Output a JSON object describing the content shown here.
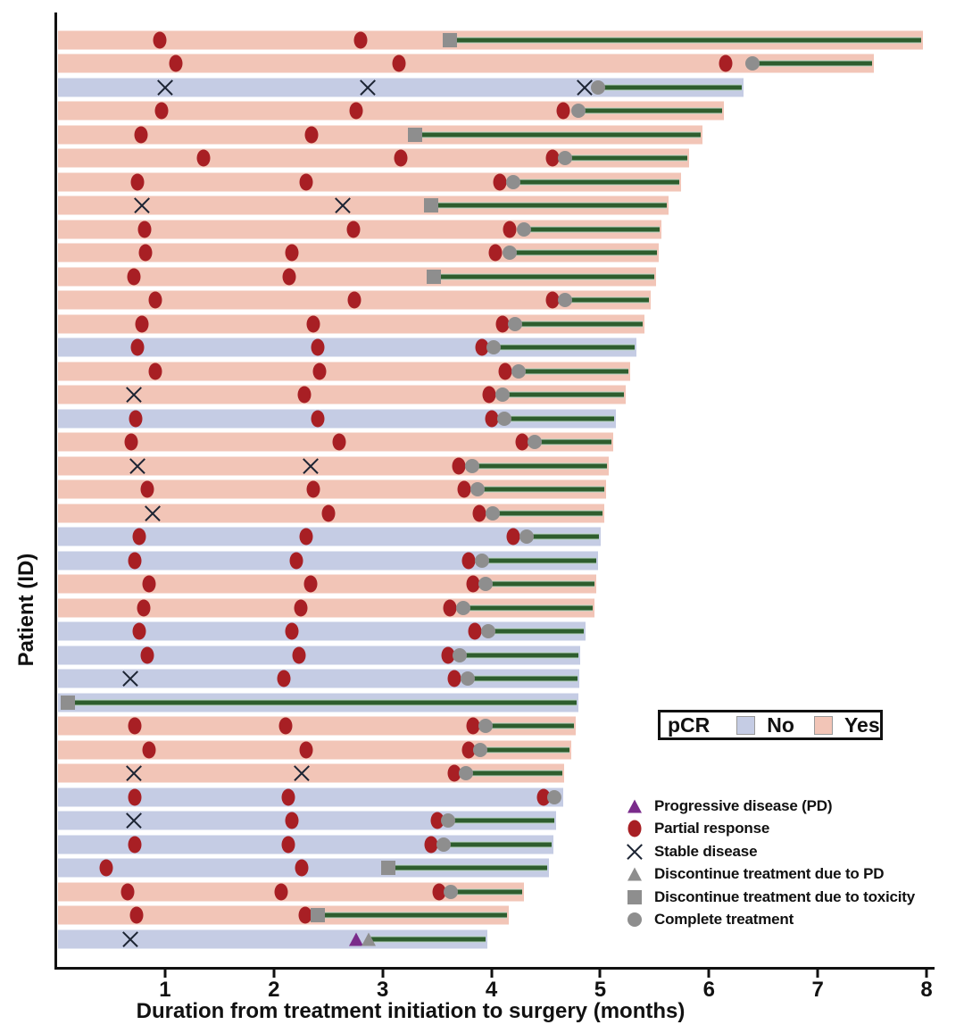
{
  "chart_data": {
    "type": "swimmer",
    "title": "",
    "xlabel": "Duration from treatment initiation to surgery (months)",
    "ylabel": "Patient (ID)",
    "xlim": [
      0,
      8
    ],
    "xticks": [
      1,
      2,
      3,
      4,
      5,
      6,
      7,
      8
    ],
    "grid": false,
    "legend_position": "lower right",
    "colors": {
      "pcr_yes": "#f2c5b7",
      "pcr_no": "#c5cce4",
      "partial_response": "#a81f24",
      "stable_disease": "#1c2433",
      "progressive_disease": "#7a2b8b",
      "discontinue_or_complete": "#8e8e8e",
      "post_treatment_line": "#2e5d2e",
      "axis": "#111111"
    },
    "pcr_legend": {
      "title": "pCR",
      "items": [
        {
          "label": "No",
          "color": "#c5cce4"
        },
        {
          "label": "Yes",
          "color": "#f2c5b7"
        }
      ]
    },
    "marker_legend": [
      {
        "marker": "pd",
        "label": "Progressive disease (PD)"
      },
      {
        "marker": "partial_response",
        "label": "Partial response"
      },
      {
        "marker": "stable_disease",
        "label": "Stable disease"
      },
      {
        "marker": "disc_pd",
        "label": "Discontinue treatment due to PD"
      },
      {
        "marker": "disc_tox",
        "label": "Discontinue treatment due to toxicity"
      },
      {
        "marker": "complete",
        "label": "Complete treatment"
      }
    ],
    "patients": [
      {
        "pcr": "Yes",
        "end": 7.95,
        "line_from": 3.62,
        "markers": [
          [
            "partial_response",
            0.95
          ],
          [
            "partial_response",
            2.8
          ],
          [
            "disc_tox",
            3.62
          ]
        ]
      },
      {
        "pcr": "Yes",
        "end": 7.5,
        "line_from": 6.4,
        "markers": [
          [
            "partial_response",
            1.1
          ],
          [
            "partial_response",
            3.15
          ],
          [
            "partial_response",
            6.15
          ],
          [
            "complete",
            6.4
          ]
        ]
      },
      {
        "pcr": "No",
        "end": 6.3,
        "line_from": 4.98,
        "markers": [
          [
            "stable_disease",
            1.0
          ],
          [
            "stable_disease",
            2.86
          ],
          [
            "stable_disease",
            4.86
          ],
          [
            "complete",
            4.98
          ]
        ]
      },
      {
        "pcr": "Yes",
        "end": 6.12,
        "line_from": 4.8,
        "markers": [
          [
            "partial_response",
            0.97
          ],
          [
            "partial_response",
            2.76
          ],
          [
            "partial_response",
            4.66
          ],
          [
            "complete",
            4.8
          ]
        ]
      },
      {
        "pcr": "Yes",
        "end": 5.92,
        "line_from": 3.3,
        "markers": [
          [
            "partial_response",
            0.78
          ],
          [
            "partial_response",
            2.35
          ],
          [
            "disc_tox",
            3.3
          ]
        ]
      },
      {
        "pcr": "Yes",
        "end": 5.8,
        "line_from": 4.68,
        "markers": [
          [
            "partial_response",
            1.35
          ],
          [
            "partial_response",
            3.17
          ],
          [
            "partial_response",
            4.56
          ],
          [
            "complete",
            4.68
          ]
        ]
      },
      {
        "pcr": "Yes",
        "end": 5.73,
        "line_from": 4.2,
        "markers": [
          [
            "partial_response",
            0.75
          ],
          [
            "partial_response",
            2.3
          ],
          [
            "partial_response",
            4.08
          ],
          [
            "complete",
            4.2
          ]
        ]
      },
      {
        "pcr": "Yes",
        "end": 5.61,
        "line_from": 3.45,
        "markers": [
          [
            "stable_disease",
            0.79
          ],
          [
            "stable_disease",
            2.63
          ],
          [
            "disc_tox",
            3.45
          ]
        ]
      },
      {
        "pcr": "Yes",
        "end": 5.55,
        "line_from": 4.3,
        "markers": [
          [
            "partial_response",
            0.81
          ],
          [
            "partial_response",
            2.73
          ],
          [
            "partial_response",
            4.17
          ],
          [
            "complete",
            4.3
          ]
        ]
      },
      {
        "pcr": "Yes",
        "end": 5.52,
        "line_from": 4.17,
        "markers": [
          [
            "partial_response",
            0.82
          ],
          [
            "partial_response",
            2.17
          ],
          [
            "partial_response",
            4.04
          ],
          [
            "complete",
            4.17
          ]
        ]
      },
      {
        "pcr": "Yes",
        "end": 5.5,
        "line_from": 3.47,
        "markers": [
          [
            "partial_response",
            0.71
          ],
          [
            "partial_response",
            2.14
          ],
          [
            "disc_tox",
            3.47
          ]
        ]
      },
      {
        "pcr": "Yes",
        "end": 5.45,
        "line_from": 4.68,
        "markers": [
          [
            "partial_response",
            0.91
          ],
          [
            "partial_response",
            2.74
          ],
          [
            "partial_response",
            4.56
          ],
          [
            "complete",
            4.68
          ]
        ]
      },
      {
        "pcr": "Yes",
        "end": 5.39,
        "line_from": 4.22,
        "markers": [
          [
            "partial_response",
            0.79
          ],
          [
            "partial_response",
            2.36
          ],
          [
            "partial_response",
            4.1
          ],
          [
            "complete",
            4.22
          ]
        ]
      },
      {
        "pcr": "No",
        "end": 5.32,
        "line_from": 4.02,
        "markers": [
          [
            "partial_response",
            0.75
          ],
          [
            "partial_response",
            2.4
          ],
          [
            "partial_response",
            3.91
          ],
          [
            "complete",
            4.02
          ]
        ]
      },
      {
        "pcr": "Yes",
        "end": 5.26,
        "line_from": 4.25,
        "markers": [
          [
            "partial_response",
            0.91
          ],
          [
            "partial_response",
            2.42
          ],
          [
            "partial_response",
            4.13
          ],
          [
            "complete",
            4.25
          ]
        ]
      },
      {
        "pcr": "Yes",
        "end": 5.22,
        "line_from": 4.1,
        "markers": [
          [
            "stable_disease",
            0.71
          ],
          [
            "partial_response",
            2.28
          ],
          [
            "partial_response",
            3.98
          ],
          [
            "complete",
            4.1
          ]
        ]
      },
      {
        "pcr": "No",
        "end": 5.13,
        "line_from": 4.12,
        "markers": [
          [
            "partial_response",
            0.73
          ],
          [
            "partial_response",
            2.4
          ],
          [
            "partial_response",
            4.0
          ],
          [
            "complete",
            4.12
          ]
        ]
      },
      {
        "pcr": "Yes",
        "end": 5.1,
        "line_from": 4.4,
        "markers": [
          [
            "partial_response",
            0.69
          ],
          [
            "partial_response",
            2.6
          ],
          [
            "partial_response",
            4.28
          ],
          [
            "complete",
            4.4
          ]
        ]
      },
      {
        "pcr": "Yes",
        "end": 5.06,
        "line_from": 3.82,
        "markers": [
          [
            "stable_disease",
            0.75
          ],
          [
            "stable_disease",
            2.34
          ],
          [
            "partial_response",
            3.7
          ],
          [
            "complete",
            3.82
          ]
        ]
      },
      {
        "pcr": "Yes",
        "end": 5.04,
        "line_from": 3.87,
        "markers": [
          [
            "partial_response",
            0.84
          ],
          [
            "partial_response",
            2.36
          ],
          [
            "partial_response",
            3.75
          ],
          [
            "complete",
            3.87
          ]
        ]
      },
      {
        "pcr": "Yes",
        "end": 5.02,
        "line_from": 4.01,
        "markers": [
          [
            "stable_disease",
            0.89
          ],
          [
            "partial_response",
            2.5
          ],
          [
            "partial_response",
            3.89
          ],
          [
            "complete",
            4.01
          ]
        ]
      },
      {
        "pcr": "No",
        "end": 4.99,
        "line_from": 4.32,
        "markers": [
          [
            "partial_response",
            0.76
          ],
          [
            "partial_response",
            2.3
          ],
          [
            "partial_response",
            4.2
          ],
          [
            "complete",
            4.32
          ]
        ]
      },
      {
        "pcr": "No",
        "end": 4.96,
        "line_from": 3.91,
        "markers": [
          [
            "partial_response",
            0.72
          ],
          [
            "partial_response",
            2.21
          ],
          [
            "partial_response",
            3.79
          ],
          [
            "complete",
            3.91
          ]
        ]
      },
      {
        "pcr": "Yes",
        "end": 4.95,
        "line_from": 3.95,
        "markers": [
          [
            "partial_response",
            0.85
          ],
          [
            "partial_response",
            2.34
          ],
          [
            "partial_response",
            3.83
          ],
          [
            "complete",
            3.95
          ]
        ]
      },
      {
        "pcr": "Yes",
        "end": 4.93,
        "line_from": 3.74,
        "markers": [
          [
            "partial_response",
            0.8
          ],
          [
            "partial_response",
            2.25
          ],
          [
            "partial_response",
            3.62
          ],
          [
            "complete",
            3.74
          ]
        ]
      },
      {
        "pcr": "No",
        "end": 4.85,
        "line_from": 3.97,
        "markers": [
          [
            "partial_response",
            0.76
          ],
          [
            "partial_response",
            2.17
          ],
          [
            "partial_response",
            3.85
          ],
          [
            "complete",
            3.97
          ]
        ]
      },
      {
        "pcr": "No",
        "end": 4.8,
        "line_from": 3.71,
        "markers": [
          [
            "partial_response",
            0.84
          ],
          [
            "partial_response",
            2.23
          ],
          [
            "partial_response",
            3.6
          ],
          [
            "complete",
            3.71
          ]
        ]
      },
      {
        "pcr": "No",
        "end": 4.79,
        "line_from": 3.78,
        "markers": [
          [
            "stable_disease",
            0.68
          ],
          [
            "partial_response",
            2.09
          ],
          [
            "partial_response",
            3.66
          ],
          [
            "complete",
            3.78
          ]
        ]
      },
      {
        "pcr": "No",
        "end": 4.78,
        "line_from": 0.11,
        "markers": [
          [
            "disc_tox",
            0.11
          ]
        ]
      },
      {
        "pcr": "Yes",
        "end": 4.76,
        "line_from": 3.95,
        "markers": [
          [
            "partial_response",
            0.72
          ],
          [
            "partial_response",
            2.11
          ],
          [
            "partial_response",
            3.83
          ],
          [
            "complete",
            3.95
          ]
        ]
      },
      {
        "pcr": "Yes",
        "end": 4.72,
        "line_from": 3.9,
        "markers": [
          [
            "partial_response",
            0.85
          ],
          [
            "partial_response",
            2.3
          ],
          [
            "partial_response",
            3.79
          ],
          [
            "complete",
            3.9
          ]
        ]
      },
      {
        "pcr": "Yes",
        "end": 4.65,
        "line_from": 3.77,
        "markers": [
          [
            "stable_disease",
            0.71
          ],
          [
            "stable_disease",
            2.26
          ],
          [
            "partial_response",
            3.66
          ],
          [
            "complete",
            3.77
          ]
        ]
      },
      {
        "pcr": "No",
        "end": 4.64,
        "line_from": 4.58,
        "markers": [
          [
            "partial_response",
            0.72
          ],
          [
            "partial_response",
            2.13
          ],
          [
            "partial_response",
            4.48
          ],
          [
            "complete",
            4.58
          ]
        ]
      },
      {
        "pcr": "No",
        "end": 4.58,
        "line_from": 3.6,
        "markers": [
          [
            "stable_disease",
            0.71
          ],
          [
            "partial_response",
            2.17
          ],
          [
            "partial_response",
            3.5
          ],
          [
            "complete",
            3.6
          ]
        ]
      },
      {
        "pcr": "No",
        "end": 4.55,
        "line_from": 3.56,
        "markers": [
          [
            "partial_response",
            0.72
          ],
          [
            "partial_response",
            2.13
          ],
          [
            "partial_response",
            3.45
          ],
          [
            "complete",
            3.56
          ]
        ]
      },
      {
        "pcr": "No",
        "end": 4.51,
        "line_from": 3.05,
        "markers": [
          [
            "partial_response",
            0.46
          ],
          [
            "partial_response",
            2.26
          ],
          [
            "disc_tox",
            3.05
          ]
        ]
      },
      {
        "pcr": "Yes",
        "end": 4.28,
        "line_from": 3.63,
        "markers": [
          [
            "partial_response",
            0.66
          ],
          [
            "partial_response",
            2.07
          ],
          [
            "partial_response",
            3.52
          ],
          [
            "complete",
            3.63
          ]
        ]
      },
      {
        "pcr": "Yes",
        "end": 4.14,
        "line_from": 2.4,
        "markers": [
          [
            "partial_response",
            0.74
          ],
          [
            "partial_response",
            2.29
          ],
          [
            "disc_tox",
            2.4
          ]
        ]
      },
      {
        "pcr": "No",
        "end": 3.95,
        "line_from": 2.87,
        "markers": [
          [
            "stable_disease",
            0.68
          ],
          [
            "pd",
            2.76
          ],
          [
            "disc_pd",
            2.87
          ]
        ]
      }
    ]
  }
}
